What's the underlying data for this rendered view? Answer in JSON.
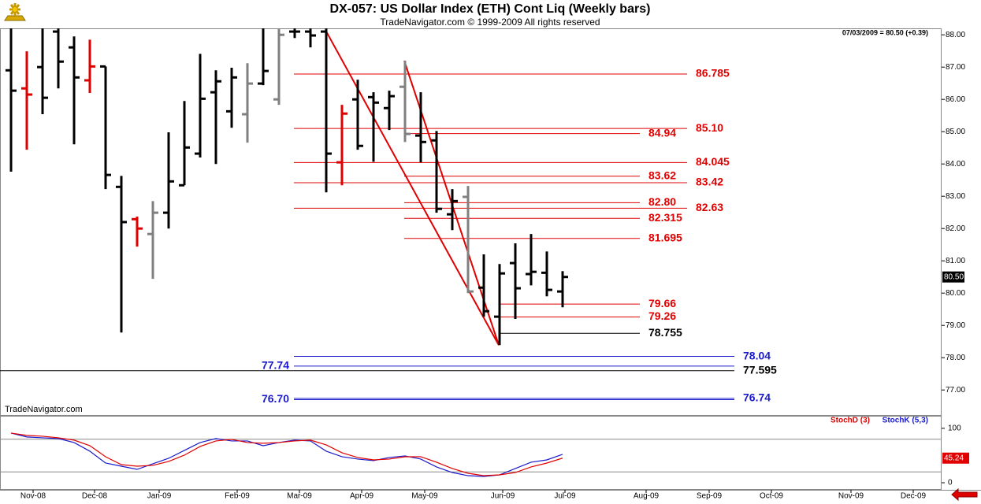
{
  "chart_data": [
    {
      "type": "ohlc",
      "title": "DX-057:  US Dollar Index (ETH) Cont Liq  (Weekly bars)",
      "subtitle": "TradeNavigator.com © 1999-2009 All rights reserved",
      "info": "07/03/2009 = 80.50 (+0.39)",
      "watermark": "TradeNavigator.com",
      "x": [
        0,
        1,
        2,
        3,
        4,
        5,
        6,
        7,
        8,
        9,
        10,
        11,
        12,
        13,
        14,
        15,
        16,
        17,
        18,
        19,
        20,
        21,
        22,
        23,
        24,
        25,
        26,
        27,
        28,
        29,
        30,
        31,
        32,
        33,
        34,
        35
      ],
      "series": [
        {
          "open": [
            86.9,
            86.34,
            87.0,
            88.1,
            87.61,
            86.59,
            87.02,
            83.29,
            82.29,
            81.83,
            82.49,
            83.34,
            84.32,
            86.22,
            85.63,
            85.54,
            86.49,
            86.0,
            88.1,
            88.1,
            88.1,
            84.05,
            86.0,
            86.07,
            85.73,
            86.39,
            84.88,
            84.73,
            82.44,
            82.98,
            80.17,
            79.27,
            80.93,
            80.59,
            80.63,
            80.05
          ],
          "high": [
            88.5,
            87.49,
            88.4,
            88.3,
            87.95,
            87.85,
            87.02,
            83.63,
            82.37,
            82.85,
            84.98,
            85.95,
            87.41,
            86.9,
            86.98,
            87.12,
            88.2,
            88.4,
            88.4,
            88.4,
            88.2,
            85.83,
            86.61,
            86.22,
            86.27,
            87.2,
            86.22,
            85.02,
            83.22,
            83.32,
            81.2,
            80.9,
            81.54,
            81.83,
            81.29,
            80.68
          ],
          "low": [
            83.76,
            84.44,
            85.54,
            86.34,
            84.61,
            86.2,
            83.22,
            78.78,
            81.44,
            80.44,
            82.0,
            83.34,
            84.2,
            84.0,
            85.12,
            84.66,
            86.44,
            85.83,
            87.9,
            87.61,
            83.12,
            83.34,
            84.44,
            84.07,
            85.05,
            84.68,
            84.05,
            82.49,
            81.95,
            80.0,
            79.27,
            78.39,
            79.2,
            80.24,
            79.9,
            79.56
          ],
          "close": [
            86.27,
            86.15,
            86.05,
            87.17,
            86.68,
            87.02,
            83.66,
            82.2,
            82.0,
            82.49,
            83.46,
            84.51,
            86.02,
            86.56,
            86.68,
            86.49,
            86.88,
            88.0,
            88.1,
            87.98,
            84.32,
            85.56,
            84.56,
            85.9,
            86.1,
            84.93,
            84.68,
            82.61,
            82.85,
            80.05,
            79.44,
            80.61,
            80.15,
            80.66,
            80.1,
            80.5
          ],
          "colors": [
            "#000000",
            "#e00000",
            "#000000",
            "#000000",
            "#000000",
            "#e00000",
            "#000000",
            "#000000",
            "#e00000",
            "#808080",
            "#000000",
            "#000000",
            "#000000",
            "#000000",
            "#000000",
            "#808080",
            "#000000",
            "#808080",
            "#000000",
            "#000000",
            "#000000",
            "#e00000",
            "#000000",
            "#000000",
            "#000000",
            "#808080",
            "#000000",
            "#000000",
            "#000000",
            "#808080",
            "#000000",
            "#000000",
            "#000000",
            "#000000",
            "#000000",
            "#000000"
          ]
        }
      ],
      "last_price": {
        "value": 80.5,
        "label": "80.50"
      },
      "xlim": [
        -0.7,
        59.05
      ],
      "xticks": [
        {
          "value": 1.4,
          "label": "Nov-08"
        },
        {
          "value": 5.3,
          "label": "Dec-08"
        },
        {
          "value": 9.4,
          "label": "Jan-09"
        },
        {
          "value": 14.35,
          "label": "Feb-09"
        },
        {
          "value": 18.3,
          "label": "Mar-09"
        },
        {
          "value": 22.25,
          "label": "Apr-09"
        },
        {
          "value": 26.25,
          "label": "May-09"
        },
        {
          "value": 31.2,
          "label": "Jun-09"
        },
        {
          "value": 35.15,
          "label": "Jul-09"
        },
        {
          "value": 40.3,
          "label": "Aug-09"
        },
        {
          "value": 44.3,
          "label": "Sep-09"
        },
        {
          "value": 48.25,
          "label": "Oct-09"
        },
        {
          "value": 53.3,
          "label": "Nov-09"
        },
        {
          "value": 57.25,
          "label": "Dec-09"
        }
      ],
      "ylim": [
        76.2,
        88.2
      ],
      "yticks": [
        {
          "value": 77,
          "label": "77.00"
        },
        {
          "value": 78,
          "label": "78.00"
        },
        {
          "value": 79,
          "label": "79.00"
        },
        {
          "value": 80,
          "label": "80.00"
        },
        {
          "value": 81,
          "label": "81.00"
        },
        {
          "value": 82,
          "label": "82.00"
        },
        {
          "value": 83,
          "label": "83.00"
        },
        {
          "value": 84,
          "label": "84.00"
        },
        {
          "value": 85,
          "label": "85.00"
        },
        {
          "value": 86,
          "label": "86.00"
        },
        {
          "value": 87,
          "label": "87.00"
        },
        {
          "value": 88,
          "label": "88.00"
        }
      ],
      "levels": [
        {
          "value": 86.785,
          "label": "86.785",
          "color": "#e00000",
          "x": [
            17.95,
            42.9
          ]
        },
        {
          "value": 85.1,
          "label": "85.10",
          "color": "#e00000",
          "x": [
            17.95,
            42.9
          ]
        },
        {
          "value": 84.94,
          "label": "84.94",
          "color": "#e00000",
          "x": [
            24.95,
            39.9
          ]
        },
        {
          "value": 84.045,
          "label": "84.045",
          "color": "#e00000",
          "x": [
            17.95,
            42.9
          ]
        },
        {
          "value": 83.62,
          "label": "83.62",
          "color": "#e00000",
          "x": [
            24.95,
            39.9
          ]
        },
        {
          "value": 83.42,
          "label": "83.42",
          "color": "#e00000",
          "x": [
            17.95,
            42.9
          ]
        },
        {
          "value": 82.8,
          "label": "82.80",
          "color": "#e00000",
          "x": [
            24.95,
            39.9
          ]
        },
        {
          "value": 82.63,
          "label": "82.63",
          "color": "#e00000",
          "x": [
            17.95,
            42.9
          ]
        },
        {
          "value": 82.315,
          "label": "82.315",
          "color": "#e00000",
          "x": [
            24.95,
            39.9
          ]
        },
        {
          "value": 81.695,
          "label": "81.695",
          "color": "#e00000",
          "x": [
            24.95,
            39.9
          ]
        },
        {
          "value": 79.66,
          "label": "79.66",
          "color": "#e00000",
          "x": [
            30.95,
            39.9
          ]
        },
        {
          "value": 79.26,
          "label": "79.26",
          "color": "#e00000",
          "x": [
            30.95,
            39.9
          ]
        },
        {
          "value": 78.755,
          "label": "78.755",
          "color": "#000000",
          "x": [
            30.95,
            39.9
          ]
        },
        {
          "value": 78.04,
          "label": "78.04",
          "color": "#1a1acc",
          "x": [
            17.95,
            45.9
          ]
        },
        {
          "value": 77.74,
          "label": "77.74",
          "color": "#1a1acc",
          "x": [
            17.95,
            45.9
          ],
          "side": "left"
        },
        {
          "value": 77.595,
          "label": "77.595",
          "color": "#000000",
          "x": [
            -0.7,
            45.9
          ]
        },
        {
          "value": 76.74,
          "label": "76.74",
          "color": "#1a1acc",
          "x": [
            17.95,
            45.9
          ]
        },
        {
          "value": 76.7,
          "label": "76.70",
          "color": "#1a1acc",
          "x": [
            17.95,
            45.9
          ],
          "side": "left"
        }
      ],
      "trendlines": [
        {
          "x": [
            19.95,
            30.95
          ],
          "y": [
            88.15,
            78.39
          ],
          "color": "#e00000"
        },
        {
          "x": [
            24.95,
            30.95
          ],
          "y": [
            87.2,
            78.39
          ],
          "color": "#e00000"
        }
      ]
    },
    {
      "type": "line",
      "x": [
        0,
        1,
        2,
        3,
        4,
        5,
        6,
        7,
        8,
        9,
        10,
        11,
        12,
        13,
        14,
        15,
        16,
        17,
        18,
        19,
        20,
        21,
        22,
        23,
        24,
        25,
        26,
        27,
        28,
        29,
        30,
        31,
        32,
        33,
        34,
        35
      ],
      "series": [
        {
          "name": "StochK (5,3)",
          "color": "#1a1acc",
          "values": [
            91.3,
            84.1,
            82.6,
            81.2,
            73.9,
            58.0,
            36.2,
            30.4,
            24.6,
            34.8,
            44.9,
            59.4,
            73.9,
            81.2,
            76.8,
            76.8,
            68.1,
            73.9,
            78.3,
            76.8,
            58.0,
            47.8,
            43.5,
            40.6,
            46.4,
            49.3,
            43.5,
            29.0,
            18.8,
            13.0,
            11.6,
            14.5,
            26.1,
            37.7,
            42.0,
            52.2
          ]
        },
        {
          "name": "StochD (3)",
          "color": "#e00000",
          "values": [
            91.3,
            87.0,
            85.5,
            82.6,
            78.3,
            68.1,
            47.8,
            33.3,
            30.4,
            31.9,
            39.1,
            50.7,
            66.7,
            76.8,
            79.7,
            73.9,
            72.5,
            73.9,
            76.8,
            78.3,
            69.6,
            55.1,
            46.4,
            42.0,
            43.5,
            47.8,
            47.8,
            37.7,
            26.1,
            17.4,
            13.0,
            14.5,
            18.8,
            29.0,
            36.2,
            45.24
          ]
        }
      ],
      "ylim": [
        -13,
        123
      ],
      "yticks": [
        0,
        100
      ],
      "hlines": [
        20,
        80
      ]
    }
  ]
}
